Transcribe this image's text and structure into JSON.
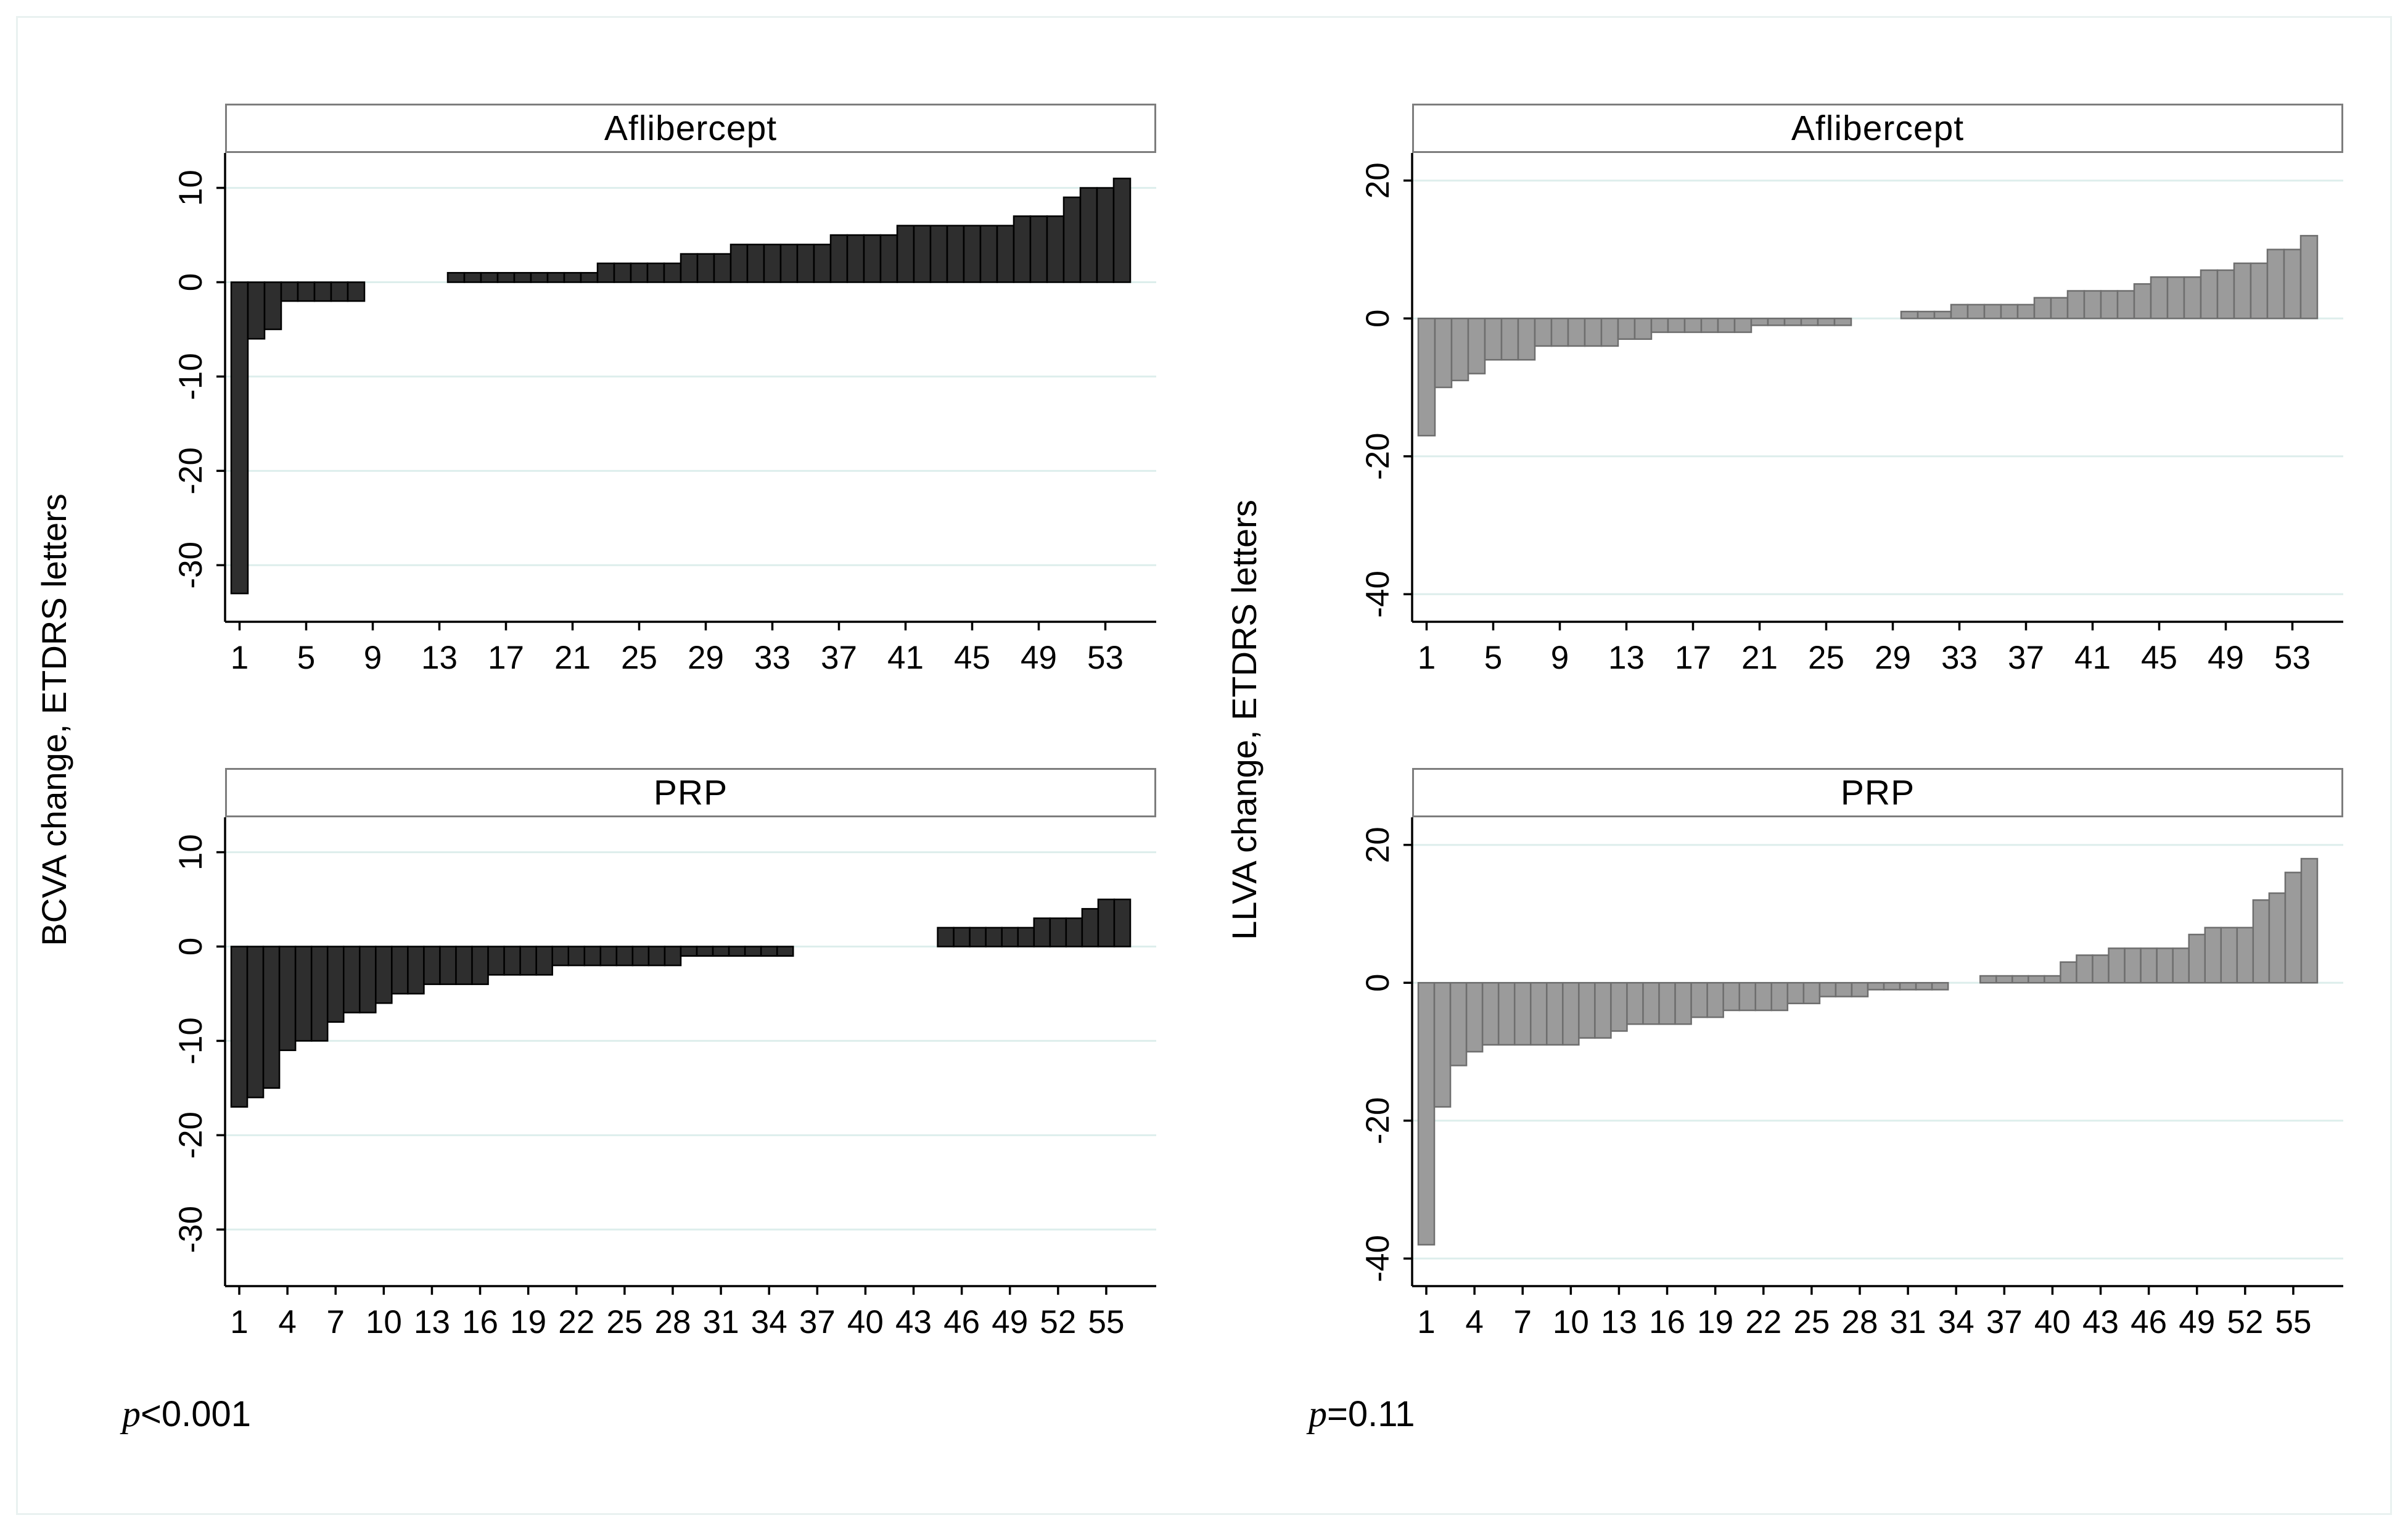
{
  "figure": {
    "ylabel_left": "BCVA change, ETDRS letters",
    "ylabel_right": "LLVA change, ETDRS letters",
    "p_left": {
      "symbol": "p",
      "rest": "<0.001"
    },
    "p_right": {
      "symbol": "p",
      "rest": "=0.11"
    }
  },
  "chart_data": [
    {
      "id": "aflibercept-bcva",
      "type": "bar",
      "title": "Aflibercept",
      "ylabel": "BCVA change, ETDRS letters",
      "values": [
        -33,
        -6,
        -5,
        -2,
        -2,
        -2,
        -2,
        -2,
        0,
        0,
        0,
        0,
        0,
        1,
        1,
        1,
        1,
        1,
        1,
        1,
        1,
        1,
        2,
        2,
        2,
        2,
        2,
        3,
        3,
        3,
        4,
        4,
        4,
        4,
        4,
        4,
        5,
        5,
        5,
        5,
        6,
        6,
        6,
        6,
        6,
        6,
        6,
        7,
        7,
        7,
        9,
        10,
        10,
        11
      ],
      "x_ticks": [
        1,
        5,
        9,
        13,
        17,
        21,
        25,
        29,
        33,
        37,
        41,
        45,
        49,
        53
      ],
      "y_ticks": [
        10,
        0,
        -10,
        -20,
        -30
      ],
      "ylim": [
        -36,
        13.7
      ],
      "grid_on": true,
      "grid_color": "#ddeeec",
      "bar_color": "#2e2e2e",
      "bar_stroke": "#000000"
    },
    {
      "id": "prp-bcva",
      "type": "bar",
      "title": "PRP",
      "ylabel": "BCVA change, ETDRS letters",
      "values": [
        -17,
        -16,
        -15,
        -11,
        -10,
        -10,
        -8,
        -7,
        -7,
        -6,
        -5,
        -5,
        -4,
        -4,
        -4,
        -4,
        -3,
        -3,
        -3,
        -3,
        -2,
        -2,
        -2,
        -2,
        -2,
        -2,
        -2,
        -2,
        -1,
        -1,
        -1,
        -1,
        -1,
        -1,
        -1,
        0,
        0,
        0,
        0,
        0,
        0,
        0,
        0,
        0,
        2,
        2,
        2,
        2,
        2,
        2,
        3,
        3,
        3,
        4,
        5,
        5
      ],
      "x_ticks": [
        1,
        4,
        7,
        10,
        13,
        16,
        19,
        22,
        25,
        28,
        31,
        34,
        37,
        40,
        43,
        46,
        49,
        52,
        55
      ],
      "y_ticks": [
        10,
        0,
        -10,
        -20,
        -30
      ],
      "ylim": [
        -36,
        13.7
      ],
      "grid_on": true,
      "grid_color": "#ddeeec",
      "bar_color": "#2e2e2e",
      "bar_stroke": "#000000"
    },
    {
      "id": "aflibercept-llva",
      "type": "bar",
      "title": "Aflibercept",
      "ylabel": "LLVA change, ETDRS letters",
      "values": [
        -17,
        -10,
        -9,
        -8,
        -6,
        -6,
        -6,
        -4,
        -4,
        -4,
        -4,
        -4,
        -3,
        -3,
        -2,
        -2,
        -2,
        -2,
        -2,
        -2,
        -1,
        -1,
        -1,
        -1,
        -1,
        -1,
        0,
        0,
        0,
        1,
        1,
        1,
        2,
        2,
        2,
        2,
        2,
        3,
        3,
        4,
        4,
        4,
        4,
        5,
        6,
        6,
        6,
        7,
        7,
        8,
        8,
        10,
        10,
        12
      ],
      "x_ticks": [
        1,
        5,
        9,
        13,
        17,
        21,
        25,
        29,
        33,
        37,
        41,
        45,
        49,
        53
      ],
      "y_ticks": [
        20,
        0,
        -20,
        -40
      ],
      "ylim": [
        -44,
        24
      ],
      "grid_on": true,
      "grid_color": "#ddeeec",
      "bar_color": "#9b9b9b",
      "bar_stroke": "#6e6e6e"
    },
    {
      "id": "prp-llva",
      "type": "bar",
      "title": "PRP",
      "ylabel": "LLVA change, ETDRS letters",
      "values": [
        -38,
        -18,
        -12,
        -10,
        -9,
        -9,
        -9,
        -9,
        -9,
        -9,
        -8,
        -8,
        -7,
        -6,
        -6,
        -6,
        -6,
        -5,
        -5,
        -4,
        -4,
        -4,
        -4,
        -3,
        -3,
        -2,
        -2,
        -2,
        -1,
        -1,
        -1,
        -1,
        -1,
        0,
        0,
        1,
        1,
        1,
        1,
        1,
        3,
        4,
        4,
        5,
        5,
        5,
        5,
        5,
        7,
        8,
        8,
        8,
        12,
        13,
        16,
        18
      ],
      "x_ticks": [
        1,
        4,
        7,
        10,
        13,
        16,
        19,
        22,
        25,
        28,
        31,
        34,
        37,
        40,
        43,
        46,
        49,
        52,
        55
      ],
      "y_ticks": [
        20,
        0,
        -20,
        -40
      ],
      "ylim": [
        -44,
        24
      ],
      "grid_on": true,
      "grid_color": "#ddeeec",
      "bar_color": "#9b9b9b",
      "bar_stroke": "#6e6e6e"
    }
  ]
}
